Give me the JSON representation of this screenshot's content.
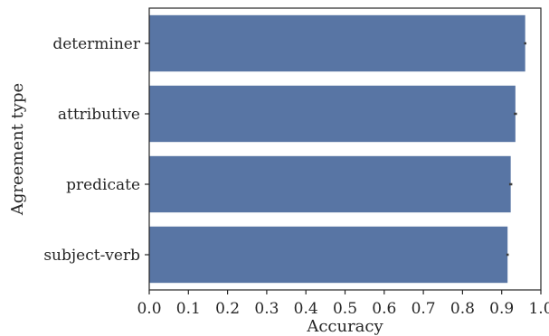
{
  "chart_data": {
    "type": "bar",
    "orientation": "horizontal",
    "categories": [
      "determiner",
      "attributive",
      "predicate",
      "subject-verb"
    ],
    "values": [
      0.96,
      0.935,
      0.923,
      0.915
    ],
    "error": [
      0.003,
      0.004,
      0.004,
      0.003
    ],
    "xlabel": "Accuracy",
    "ylabel": "Agreement type",
    "xlim": [
      0.0,
      1.0
    ],
    "xticks": [
      "0.0",
      "0.1",
      "0.2",
      "0.3",
      "0.4",
      "0.5",
      "0.6",
      "0.7",
      "0.8",
      "0.9",
      "1.0"
    ],
    "grid": false,
    "legend": "none",
    "bar_color": "#5875a4",
    "errorbar_color": "#3d3d3d"
  }
}
